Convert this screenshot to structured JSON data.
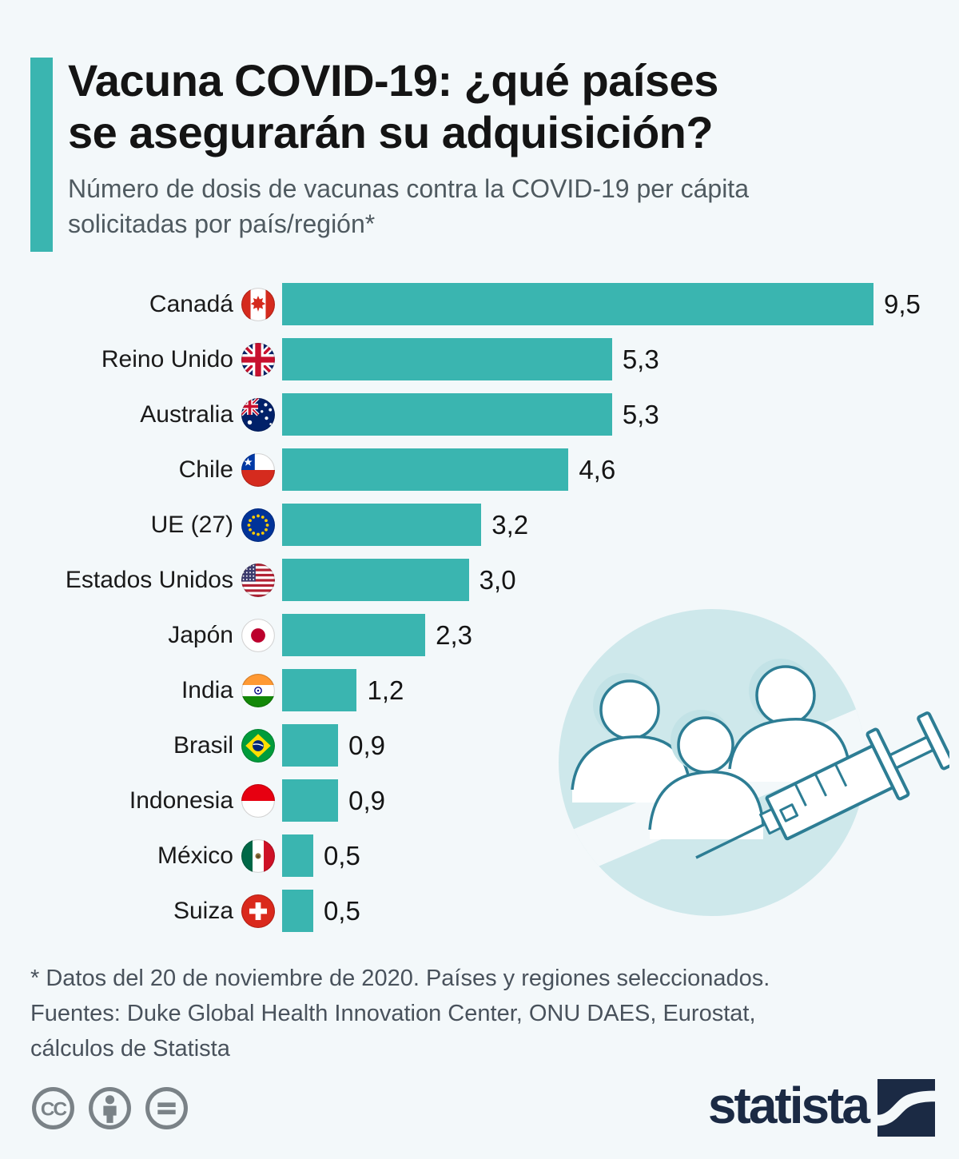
{
  "header": {
    "title_line1": "Vacuna COVID-19: ¿qué países",
    "title_line2": "se asegurarán su adquisición?",
    "subtitle_line1": "Número de dosis de vacunas contra la COVID-19 per cápita",
    "subtitle_line2": "solicitadas por país/región*"
  },
  "chart_data": {
    "type": "bar",
    "orientation": "horizontal",
    "title": "Vacuna COVID-19: ¿qué países se asegurarán su adquisición?",
    "subtitle": "Número de dosis de vacunas contra la COVID-19 per cápita solicitadas por país/región*",
    "categories": [
      "Canadá",
      "Reino Unido",
      "Australia",
      "Chile",
      "UE (27)",
      "Estados Unidos",
      "Japón",
      "India",
      "Brasil",
      "Indonesia",
      "México",
      "Suiza"
    ],
    "values": [
      9.5,
      5.3,
      5.3,
      4.6,
      3.2,
      3.0,
      2.3,
      1.2,
      0.9,
      0.9,
      0.5,
      0.5
    ],
    "value_labels": [
      "9,5",
      "5,3",
      "5,3",
      "4,6",
      "3,2",
      "3,0",
      "2,3",
      "1,2",
      "0,9",
      "0,9",
      "0,5",
      "0,5"
    ],
    "flags": [
      "flag-canada",
      "flag-uk",
      "flag-australia",
      "flag-chile",
      "flag-eu",
      "flag-usa",
      "flag-japan",
      "flag-india",
      "flag-brazil",
      "flag-indonesia",
      "flag-mexico",
      "flag-switzerland"
    ],
    "xlim": [
      0,
      9.5
    ],
    "xlabel": "",
    "ylabel": "",
    "grid": false,
    "legend": false,
    "bar_color": "#3ab5b0"
  },
  "footer": {
    "note": "* Datos del 20 de noviembre de 2020. Países y regiones seleccionados.",
    "sources_line1": "Fuentes: Duke Global Health Innovation Center, ONU DAES, Eurostat,",
    "sources_line2": "cálculos de Statista",
    "license_icons": [
      "cc-icon",
      "cc-by-icon",
      "cc-nd-icon"
    ],
    "brand": "statista"
  },
  "colors": {
    "background": "#f3f8fa",
    "accent_teal": "#3ab5b0",
    "title_text": "#141414",
    "subtitle_text": "#4f5a60",
    "footnote_text": "#49525c",
    "license_gray": "#7a8287",
    "brand_navy": "#1b2a44",
    "illustration_circle": "#cee8eb",
    "illustration_stroke": "#2d7d94"
  }
}
